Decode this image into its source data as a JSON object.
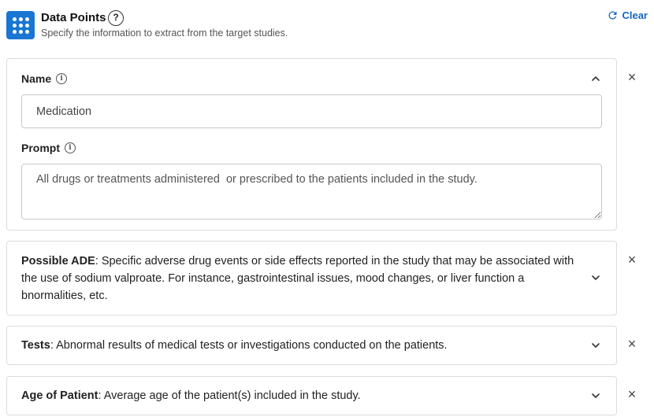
{
  "header": {
    "title": "Data Points",
    "help": "?",
    "subtitle": "Specify the information to extract from the target studies.",
    "clear_label": "Clear"
  },
  "expanded_card": {
    "name_label": "Name",
    "name_value": "Medication",
    "prompt_label": "Prompt",
    "prompt_value": "All drugs or treatments administered  or prescribed to the patients included in the study."
  },
  "collapsed_cards": [
    {
      "name": "Possible ADE",
      "description": "Specific adverse drug events or side effects reported in the study that may be associated with the use of sodium valproate. For instance, gastrointestinal issues, mood changes, or liver function a bnormalities, etc."
    },
    {
      "name": "Tests",
      "description": "Abnormal results of medical tests or investigations conducted on the patients."
    },
    {
      "name": "Age of Patient",
      "description": "Average age of the patient(s) included in the study."
    }
  ],
  "icons": {
    "info": "i",
    "remove": "×"
  },
  "colors": {
    "accent": "#1976d2",
    "link": "#1565c0",
    "border": "#dcdcdc"
  }
}
